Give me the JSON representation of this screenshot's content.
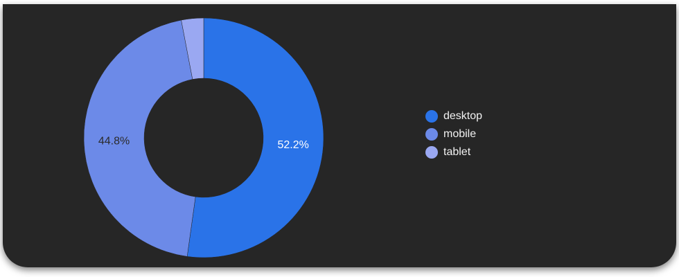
{
  "chart_data": {
    "type": "pie",
    "donut": true,
    "categories": [
      "desktop",
      "mobile",
      "tablet"
    ],
    "values": [
      52.2,
      44.8,
      3.0
    ],
    "data_labels": [
      "52.2%",
      "44.8%",
      ""
    ],
    "colors": [
      "#2a73e8",
      "#6c8ae8",
      "#9aa8f2"
    ],
    "legend_position": "right"
  },
  "legend": {
    "items": [
      {
        "label": "desktop",
        "color": "#2a73e8"
      },
      {
        "label": "mobile",
        "color": "#6c8ae8"
      },
      {
        "label": "tablet",
        "color": "#9aa8f2"
      }
    ]
  },
  "theme": {
    "card_background": "#262626",
    "label_on_dark": "#ffffff",
    "label_on_light": "#2b2b2b"
  }
}
